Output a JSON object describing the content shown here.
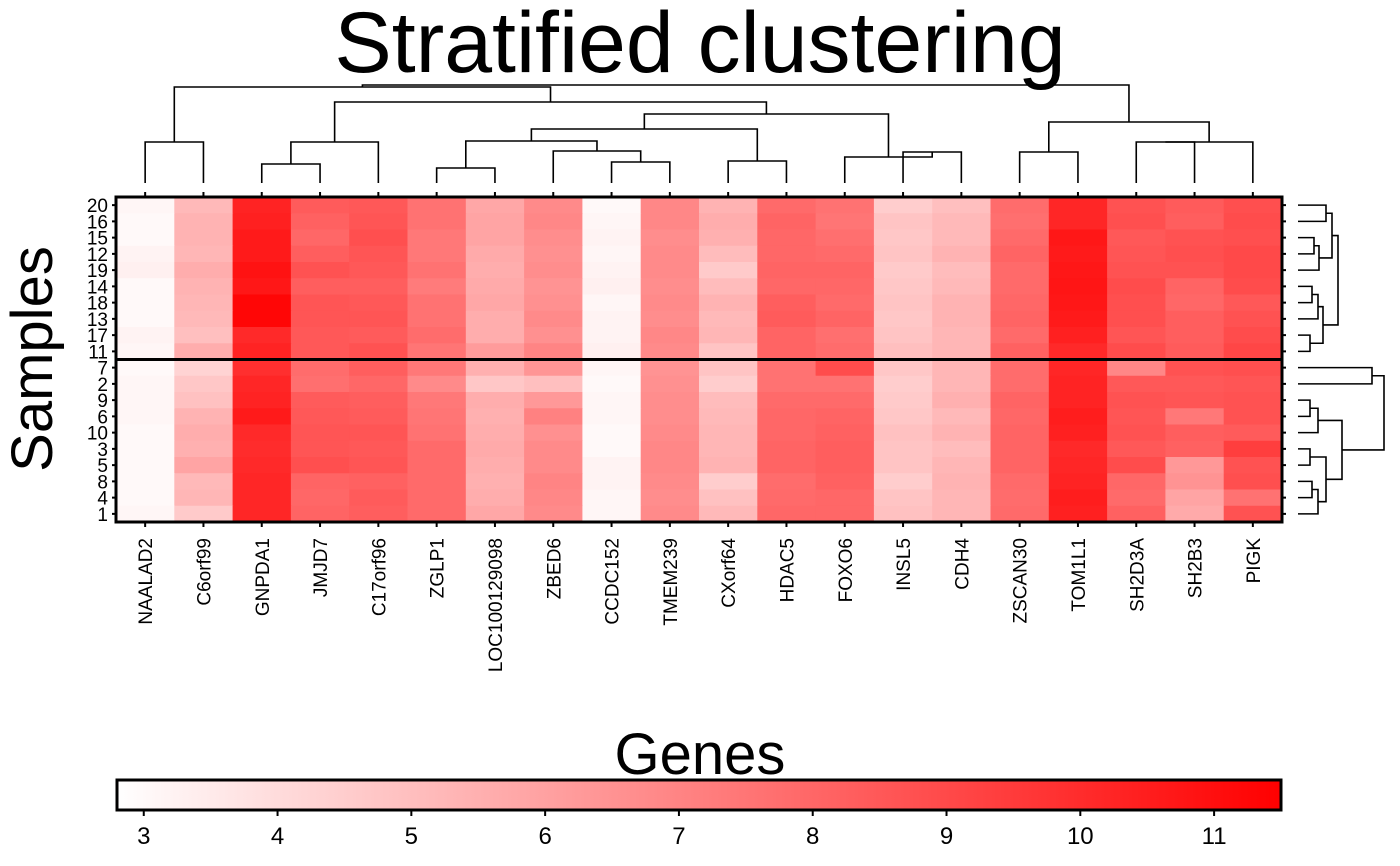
{
  "chart_data": {
    "type": "heatmap",
    "title": "Stratified clustering",
    "xlabel": "Genes",
    "ylabel": "Samples",
    "genes": [
      "NAALAD2",
      "C6orf99",
      "GNPDA1",
      "JMJD7",
      "C17orf96",
      "ZGLP1",
      "LOC100129098",
      "ZBED6",
      "CCDC152",
      "TMEM239",
      "CXorf64",
      "HDAC5",
      "FOXO6",
      "INSL5",
      "CDH4",
      "ZSCAN30",
      "TOM1L1",
      "SH2D3A",
      "SH2B3",
      "PIGK"
    ],
    "samples": [
      "20",
      "16",
      "15",
      "12",
      "19",
      "14",
      "18",
      "13",
      "17",
      "11",
      "7",
      "2",
      "9",
      "6",
      "10",
      "3",
      "5",
      "8",
      "4",
      "1"
    ],
    "strata_split_after_row": 10,
    "values": [
      [
        3.1,
        5.2,
        10.3,
        8.4,
        8.5,
        7.6,
        5.8,
        6.8,
        3.0,
        6.9,
        5.4,
        7.9,
        7.6,
        4.5,
        5.0,
        7.8,
        10.2,
        8.7,
        8.4,
        8.8
      ],
      [
        3.0,
        5.4,
        10.4,
        8.2,
        8.6,
        7.6,
        5.9,
        6.9,
        3.1,
        6.9,
        5.6,
        8.1,
        7.5,
        4.8,
        5.2,
        7.7,
        10.2,
        8.8,
        8.3,
        8.9
      ],
      [
        3.0,
        5.4,
        10.6,
        8.0,
        8.8,
        7.4,
        5.9,
        6.7,
        3.2,
        6.7,
        5.5,
        8.0,
        7.7,
        4.7,
        5.2,
        7.9,
        10.7,
        8.5,
        8.7,
        8.8
      ],
      [
        3.2,
        5.3,
        10.6,
        8.3,
        8.6,
        7.4,
        5.7,
        6.6,
        3.1,
        6.8,
        5.1,
        8.0,
        7.9,
        4.8,
        5.4,
        8.1,
        10.6,
        8.6,
        8.8,
        9.0
      ],
      [
        3.3,
        5.6,
        10.9,
        8.7,
        8.5,
        7.6,
        5.6,
        6.7,
        3.2,
        6.8,
        4.6,
        8.1,
        8.1,
        4.6,
        5.1,
        7.9,
        10.7,
        8.7,
        8.7,
        9.0
      ],
      [
        3.0,
        5.4,
        10.7,
        8.3,
        8.3,
        7.3,
        5.7,
        6.5,
        3.3,
        6.7,
        5.1,
        8.0,
        8.0,
        4.7,
        5.2,
        7.9,
        10.8,
        8.9,
        8.1,
        8.9
      ],
      [
        3.0,
        5.3,
        11.3,
        8.6,
        8.5,
        7.6,
        5.8,
        6.6,
        3.1,
        6.8,
        5.4,
        8.3,
        7.9,
        4.8,
        5.4,
        8.0,
        10.7,
        8.8,
        8.0,
        8.5
      ],
      [
        3.0,
        5.2,
        11.3,
        8.6,
        8.6,
        7.6,
        5.6,
        6.8,
        3.2,
        6.7,
        5.2,
        8.4,
        8.1,
        4.7,
        5.4,
        8.1,
        10.6,
        8.8,
        8.3,
        8.7
      ],
      [
        3.2,
        5.0,
        10.1,
        8.5,
        8.4,
        7.8,
        5.6,
        6.6,
        3.2,
        6.9,
        5.3,
        8.1,
        7.7,
        4.8,
        5.3,
        7.9,
        10.4,
        8.6,
        8.3,
        8.9
      ],
      [
        3.1,
        5.6,
        10.3,
        8.5,
        8.7,
        7.5,
        6.2,
        7.0,
        3.3,
        6.8,
        4.8,
        8.1,
        7.8,
        5.0,
        5.3,
        8.2,
        10.1,
        8.9,
        8.4,
        9.1
      ],
      [
        3.0,
        4.3,
        9.9,
        7.8,
        8.3,
        7.4,
        5.5,
        6.4,
        3.1,
        6.5,
        4.8,
        7.6,
        8.9,
        4.7,
        5.3,
        7.8,
        10.2,
        6.9,
        8.7,
        8.8
      ],
      [
        3.1,
        4.7,
        10.2,
        7.7,
        8.0,
        6.8,
        4.7,
        5.0,
        3.0,
        6.6,
        4.5,
        7.6,
        7.6,
        4.5,
        5.3,
        7.8,
        10.3,
        8.5,
        8.5,
        8.6
      ],
      [
        3.1,
        4.9,
        10.3,
        8.4,
        8.3,
        7.4,
        5.6,
        6.3,
        3.1,
        6.7,
        5.1,
        7.9,
        7.9,
        4.6,
        5.5,
        8.1,
        10.3,
        8.7,
        8.6,
        8.7
      ],
      [
        3.1,
        5.4,
        10.6,
        8.5,
        8.4,
        7.5,
        5.5,
        7.1,
        3.1,
        6.7,
        5.2,
        8.0,
        8.1,
        4.7,
        5.2,
        8.0,
        10.5,
        8.6,
        7.4,
        8.7
      ],
      [
        3.0,
        5.6,
        10.1,
        8.6,
        8.6,
        7.6,
        5.6,
        6.6,
        3.0,
        6.8,
        5.3,
        8.0,
        8.2,
        4.9,
        5.4,
        8.1,
        10.4,
        8.7,
        8.3,
        8.4
      ],
      [
        3.0,
        5.5,
        10.0,
        8.6,
        8.5,
        7.9,
        5.7,
        6.8,
        3.0,
        6.9,
        5.3,
        8.1,
        8.3,
        4.8,
        5.1,
        8.1,
        10.1,
        8.5,
        8.2,
        9.4
      ],
      [
        3.0,
        5.9,
        10.1,
        8.8,
        8.6,
        7.9,
        5.6,
        6.8,
        3.2,
        6.9,
        5.4,
        8.1,
        8.3,
        4.8,
        5.3,
        8.1,
        10.2,
        8.9,
        6.3,
        8.7
      ],
      [
        3.0,
        5.2,
        10.2,
        8.1,
        8.2,
        7.9,
        5.5,
        7.0,
        3.2,
        6.8,
        4.5,
        7.8,
        8.2,
        4.5,
        5.4,
        7.9,
        10.3,
        8.0,
        6.5,
        8.8
      ],
      [
        3.0,
        5.3,
        10.2,
        8.0,
        8.4,
        7.9,
        5.6,
        6.9,
        3.1,
        6.7,
        4.9,
        7.9,
        8.0,
        4.8,
        5.3,
        7.8,
        10.5,
        7.9,
        5.9,
        7.6
      ],
      [
        3.1,
        4.6,
        10.2,
        8.1,
        8.3,
        7.9,
        5.8,
        6.8,
        3.1,
        6.8,
        5.2,
        8.0,
        8.0,
        4.9,
        5.3,
        7.9,
        10.4,
        8.2,
        5.7,
        8.7
      ]
    ],
    "colorbar": {
      "min": 2.8,
      "max": 11.5,
      "ticks": [
        3,
        4,
        5,
        6,
        7,
        8,
        9,
        10,
        11
      ],
      "low_color": "#ffffff",
      "high_color": "#ff0000"
    },
    "column_dendrogram": true,
    "row_dendrogram": true
  }
}
